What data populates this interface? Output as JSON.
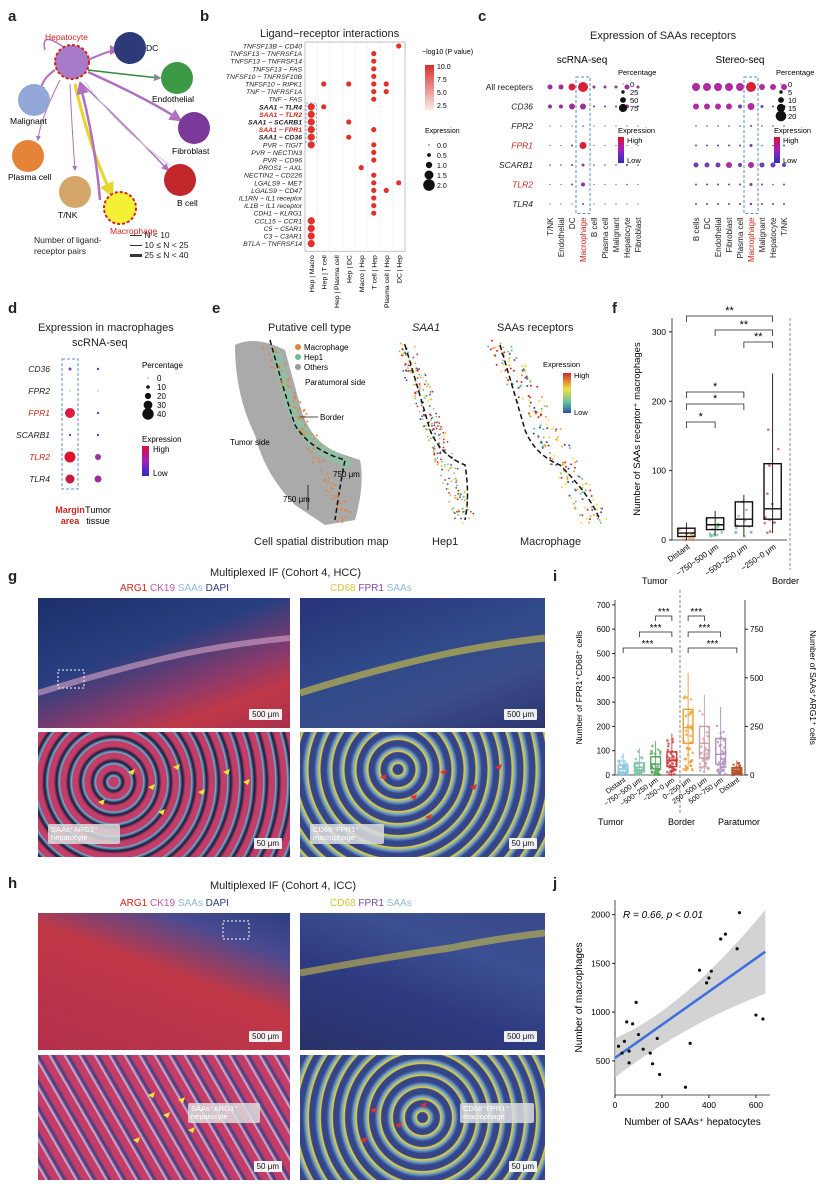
{
  "panels": {
    "a": {
      "label": "a",
      "nodes": [
        "Hepatocyte",
        "DC",
        "Endothelial",
        "Malignant",
        "Fibroblast",
        "Plasma cell",
        "B cell",
        "T/NK",
        "Macrophage"
      ],
      "legend_title": "Number of ligand-receptor pairs",
      "legend_items": [
        "N < 10",
        "10 ≤ N < 25",
        "25 ≤ N < 40"
      ]
    },
    "b": {
      "label": "b",
      "title": "Ligand−receptor interactions",
      "pairs": [
        "TNFSF13B − CD40",
        "TNFSF13 − TNFRSF1A",
        "TNFSF13 − TNFRSF14",
        "TNFSF13 − FAS",
        "TNFSF10 − TNFRSF10B",
        "TNFSF10 − RIPK1",
        "TNF − TNFRSF1A",
        "TNF − FAS",
        "SAA1 − TLR4",
        "SAA1 − TLR2",
        "SAA1 − SCARB1",
        "SAA1 − FPR1",
        "SAA1 − CD36",
        "PVR − TIGIT",
        "PVR − NECTIN3",
        "PVR − CD96",
        "PROS1 − AXL",
        "NECTIN2 − CD226",
        "LGALS9 − MET",
        "LGALS9 − CD47",
        "IL1RN − IL1 receptor",
        "IL1B − IL1 receptor",
        "CDH1 − KLRG1",
        "CCL15 − CCR1",
        "C5 − C5AR1",
        "C3 − C3AR1",
        "BTLA − TNFRSF14"
      ],
      "groups": [
        "Hep | Macro",
        "Hep | T cell",
        "Hep | Plasma cell",
        "Hep | DC",
        "Macro | Hep",
        "T cell | Hep",
        "Plasma cell | Hep",
        "DC | Hep"
      ],
      "pval_legend": {
        "title": "−log10 (P value)",
        "ticks": [
          "10.0",
          "7.5",
          "5.0",
          "2.5"
        ]
      },
      "expr_legend": {
        "title": "Expression",
        "ticks": [
          "0.0",
          "0.5",
          "1.0",
          "1.5",
          "2.0"
        ]
      }
    },
    "c": {
      "label": "c",
      "title": "Expression of SAAs receptors",
      "left_title": "scRNA-seq",
      "right_title": "Stereo-seq",
      "rows": [
        "All recepters",
        "CD36",
        "FPR2",
        "FPR1",
        "SCARB1",
        "TLR2",
        "TLR4"
      ],
      "left_cols": [
        "T/NK",
        "Endothelial",
        "DC",
        "Macrophage",
        "B cell",
        "Plasma cell",
        "Malignant",
        "Hepatocyte",
        "Fibroblast"
      ],
      "right_cols": [
        "B cells",
        "DC",
        "Endothelial",
        "Fibroblast",
        "Plasma cell",
        "Macrophage",
        "Malignant",
        "Hepatocyte",
        "T/NK"
      ],
      "left_pct": {
        "title": "Percentage",
        "ticks": [
          "0",
          "25",
          "50",
          "75"
        ]
      },
      "right_pct": {
        "title": "Percentage",
        "ticks": [
          "0",
          "5",
          "10",
          "15",
          "20"
        ]
      },
      "expr": {
        "title": "Expression",
        "high": "High",
        "low": "Low"
      }
    },
    "d": {
      "label": "d",
      "title": "Expression in macrophages",
      "subtitle": "scRNA-seq",
      "rows": [
        "CD36",
        "FPR2",
        "FPR1",
        "SCARB1",
        "TLR2",
        "TLR4"
      ],
      "cols": [
        "Margin area",
        "Tumor tissue"
      ],
      "pct": {
        "title": "Percentage",
        "ticks": [
          "0",
          "10",
          "20",
          "30",
          "40"
        ]
      },
      "expr": {
        "title": "Expression",
        "high": "High",
        "low": "Low"
      }
    },
    "e": {
      "label": "e",
      "t1": "Putative cell type",
      "t2": "SAA1",
      "t3": "SAAs receptors",
      "legend": [
        "Macrophage",
        "Hep1",
        "Others"
      ],
      "paratumoral": "Paratumoral side",
      "border": "Border",
      "tumor_side": "Tumor side",
      "d1": "750 μm",
      "d2": "750 μm",
      "caption": "Cell spatial distribution map",
      "cap2": "Hep1",
      "cap3": "Macrophage",
      "expr": {
        "title": "Expression",
        "high": "High",
        "low": "Low"
      }
    },
    "f": {
      "label": "f",
      "ylabel": "Number of SAAs receptor⁺ macrophages",
      "yticks": [
        "0",
        "100",
        "200",
        "300"
      ],
      "categories": [
        "Distant",
        "−750~500 μm",
        "−500~250 μm",
        "−250~0 μm"
      ],
      "left_caption": "Tumor",
      "right_caption": "Border",
      "sig": [
        "**",
        "**",
        "**",
        "*",
        "*",
        "*"
      ]
    },
    "g": {
      "label": "g",
      "title": "Multiplexed IF (Cohort 4, HCC)",
      "left_channels": [
        "ARG1",
        "CK19",
        "SAAs",
        "DAPI"
      ],
      "right_channels": [
        "CD68",
        "FPR1",
        "SAAs"
      ],
      "scale_big": "500 μm",
      "scale_small": "50 μm",
      "tag_left": "SAAs⁺ARG1⁺ hepatocyte",
      "tag_right": "CD68⁺FPR1⁺ macrophage"
    },
    "h": {
      "label": "h",
      "title": "Multiplexed IF (Cohort 4, ICC)",
      "left_channels": [
        "ARG1",
        "CK19",
        "SAAs",
        "DAPI"
      ],
      "right_channels": [
        "CD68",
        "FPR1",
        "SAAs"
      ],
      "scale_big": "500 μm",
      "scale_small": "50 μm",
      "tag_left": "SAAs⁺ARG1⁺ hepatocyte",
      "tag_right": "CD68⁺FPR1⁺ macrophage"
    },
    "i": {
      "label": "i",
      "ylabel_left": "Number of FPR1⁺CD68⁺ cells",
      "ylabel_right": "Number of SAAs⁺ARG1⁺ cells",
      "yticks_left": [
        "0",
        "100",
        "200",
        "300",
        "400",
        "500",
        "600",
        "700"
      ],
      "yticks_right": [
        "0",
        "250",
        "500",
        "750"
      ],
      "categories": [
        "Distant",
        "−750~500 μm",
        "−500~250 μm",
        "−250~0 μm",
        "0~250 μm",
        "250~500 μm",
        "500~750 μm",
        "Distant"
      ],
      "captions": [
        "Tumor",
        "Border",
        "Paratumor"
      ],
      "sig": [
        "***",
        "***",
        "***",
        "***",
        "***",
        "***"
      ]
    },
    "j": {
      "label": "j",
      "stat": "R = 0.66, p < 0.01",
      "xlabel": "Number of SAAs⁺ hepatocytes",
      "ylabel": "Number of macrophages",
      "xticks": [
        "0",
        "200",
        "400",
        "600"
      ],
      "yticks": [
        "500",
        "1000",
        "1500",
        "2000"
      ]
    }
  },
  "chart_data": [
    {
      "type": "scatter",
      "panel": "j",
      "xlabel": "Number of SAAs⁺ hepatocytes",
      "ylabel": "Number of macrophages",
      "xlim": [
        0,
        660
      ],
      "ylim": [
        150,
        2150
      ],
      "x": [
        15,
        30,
        40,
        50,
        60,
        75,
        100,
        120,
        150,
        160,
        190,
        300,
        320,
        360,
        390,
        400,
        410,
        450,
        470,
        520,
        530,
        600,
        630,
        180,
        90,
        60
      ],
      "y": [
        650,
        580,
        700,
        900,
        600,
        880,
        770,
        620,
        580,
        470,
        360,
        230,
        680,
        1430,
        1300,
        1350,
        1420,
        1750,
        1800,
        1650,
        2020,
        970,
        930,
        730,
        1100,
        480
      ],
      "fit": {
        "x": [
          0,
          640
        ],
        "y": [
          530,
          1620
        ]
      },
      "stat": "R = 0.66, p < 0.01"
    },
    {
      "type": "box",
      "panel": "f",
      "categories": [
        "Distant",
        "−750~500 μm",
        "−500~250 μm",
        "−250~0 μm"
      ],
      "ylim": [
        0,
        320
      ],
      "boxes": [
        {
          "q1": 5,
          "median": 10,
          "q3": 17,
          "min": 0,
          "max": 25
        },
        {
          "q1": 15,
          "median": 22,
          "q3": 32,
          "min": 5,
          "max": 42
        },
        {
          "q1": 20,
          "median": 30,
          "q3": 55,
          "min": 5,
          "max": 65
        },
        {
          "q1": 30,
          "median": 45,
          "q3": 110,
          "min": 10,
          "max": 240
        }
      ]
    },
    {
      "type": "box",
      "panel": "i",
      "categories": [
        "Distant",
        "−750~500 μm",
        "−500~250 μm",
        "−250~0 μm",
        "0~250 μm",
        "250~500 μm",
        "500~750 μm",
        "Distant"
      ],
      "ylim": [
        0,
        720
      ],
      "boxes": [
        {
          "q1": 12,
          "median": 25,
          "q3": 40,
          "min": 0,
          "max": 90
        },
        {
          "q1": 18,
          "median": 32,
          "q3": 50,
          "min": 0,
          "max": 110
        },
        {
          "q1": 25,
          "median": 45,
          "q3": 75,
          "min": 0,
          "max": 140
        },
        {
          "q1": 35,
          "median": 60,
          "q3": 95,
          "min": 0,
          "max": 170
        },
        {
          "q1": 130,
          "median": 195,
          "q3": 270,
          "min": 20,
          "max": 420
        },
        {
          "q1": 70,
          "median": 130,
          "q3": 200,
          "min": 10,
          "max": 330
        },
        {
          "q1": 45,
          "median": 85,
          "q3": 150,
          "min": 5,
          "max": 280
        },
        {
          "q1": 8,
          "median": 18,
          "q3": 30,
          "min": 0,
          "max": 60
        }
      ]
    }
  ]
}
